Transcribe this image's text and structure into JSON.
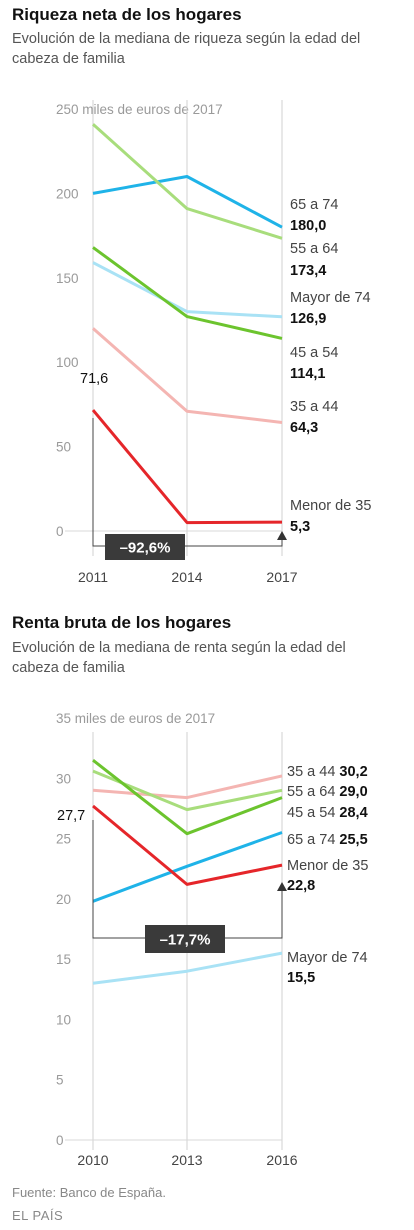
{
  "chart_data": [
    {
      "type": "line",
      "title": "Riqueza neta de los hogares",
      "subtitle": "Evolución de la mediana de riqueza según la edad del cabeza de familia",
      "ylabel": "miles de euros de 2017",
      "ylim": [
        0,
        250
      ],
      "yticks": [
        "0",
        "50",
        "100",
        "150",
        "200",
        "250"
      ],
      "categories": [
        "2011",
        "2014",
        "2017"
      ],
      "grid": false,
      "series": [
        {
          "name": "65 a 74",
          "values": [
            200,
            210,
            180.0
          ],
          "color": "#1fb3e8",
          "end_label": "180,0"
        },
        {
          "name": "55 a 64",
          "values": [
            241,
            191,
            173.4
          ],
          "color": "#a8dd7c",
          "end_label": "173,4"
        },
        {
          "name": "Mayor de 74",
          "values": [
            159,
            130,
            126.9
          ],
          "color": "#a9e2f5",
          "end_label": "126,9"
        },
        {
          "name": "45 a 54",
          "values": [
            168,
            127,
            114.1
          ],
          "color": "#6cc42e",
          "end_label": "114,1"
        },
        {
          "name": "35 a 44",
          "values": [
            120,
            71,
            64.3
          ],
          "color": "#f4b5b2",
          "end_label": "64,3"
        },
        {
          "name": "Menor de 35",
          "values": [
            71.6,
            5,
            5.3
          ],
          "color": "#e5262a",
          "end_label": "5,3"
        }
      ],
      "annotation": {
        "start_label": "71,6",
        "change": "–92,6%"
      }
    },
    {
      "type": "line",
      "title": "Renta bruta de los hogares",
      "subtitle": "Evolución de la mediana de renta según la edad del cabeza de familia",
      "ylabel": "miles de euros de 2017",
      "ylim": [
        0,
        35
      ],
      "yticks": [
        "0",
        "5",
        "10",
        "15",
        "20",
        "25",
        "30",
        "35"
      ],
      "categories": [
        "2010",
        "2013",
        "2016"
      ],
      "grid": false,
      "series": [
        {
          "name": "35 a 44",
          "values": [
            29.0,
            28.4,
            30.2
          ],
          "color": "#f4b5b2",
          "end_label": "30,2"
        },
        {
          "name": "55 a 64",
          "values": [
            30.6,
            27.4,
            29.0
          ],
          "color": "#a8dd7c",
          "end_label": "29,0"
        },
        {
          "name": "45 a 54",
          "values": [
            31.5,
            25.4,
            28.4
          ],
          "color": "#6cc42e",
          "end_label": "28,4"
        },
        {
          "name": "65 a 74",
          "values": [
            19.8,
            22.7,
            25.5
          ],
          "color": "#1fb3e8",
          "end_label": "25,5"
        },
        {
          "name": "Menor de 35",
          "values": [
            27.7,
            21.2,
            22.8
          ],
          "color": "#e5262a",
          "end_label": "22,8"
        },
        {
          "name": "Mayor de 74",
          "values": [
            13.0,
            14.0,
            15.5
          ],
          "color": "#a9e2f5",
          "end_label": "15,5"
        }
      ],
      "annotation": {
        "start_label": "27,7",
        "change": "–17,7%"
      }
    }
  ],
  "footer": {
    "source": "Fuente: Banco de España.",
    "logo": "EL PAÍS"
  }
}
